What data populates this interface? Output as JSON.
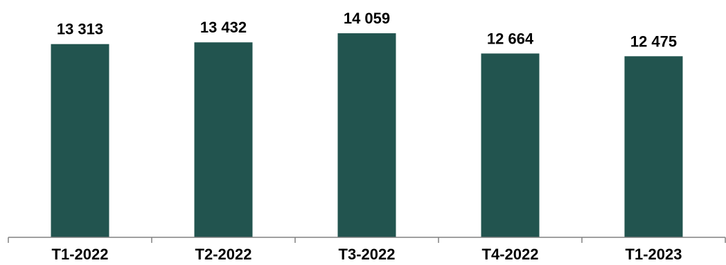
{
  "chart_data": {
    "type": "bar",
    "categories": [
      "T1-2022",
      "T2-2022",
      "T3-2022",
      "T4-2022",
      "T1-2023"
    ],
    "values": [
      13313,
      13432,
      14059,
      12664,
      12475
    ],
    "data_labels": [
      "13 313",
      "13 432",
      "14 059",
      "12 664",
      "12 475"
    ],
    "title": "",
    "xlabel": "",
    "ylabel": "",
    "ylim": [
      0,
      16350
    ],
    "grid": false,
    "legend": "none",
    "bar_color": "#22544f"
  }
}
